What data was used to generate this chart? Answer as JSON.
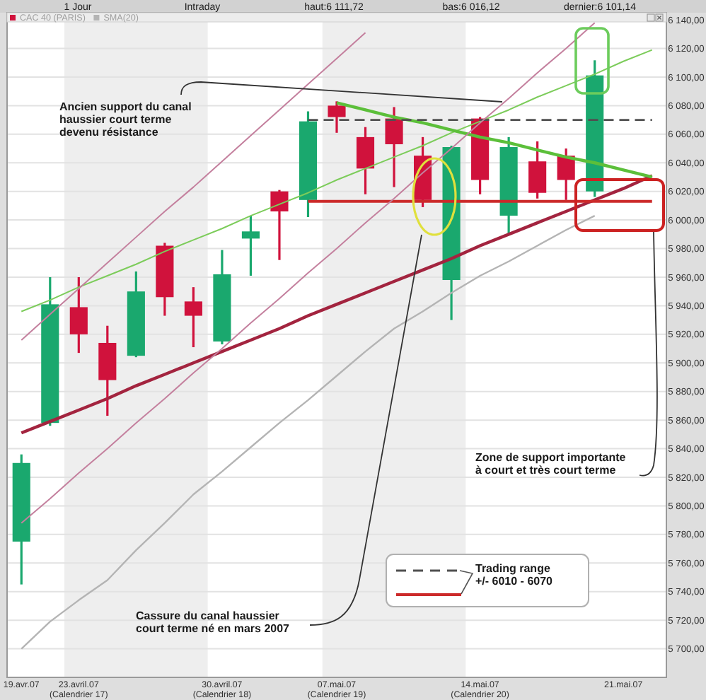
{
  "chart_data": {
    "type": "candlestick",
    "categories": [
      "19.avr.07",
      null,
      "23.avril.07 (Calendrier 17)",
      null,
      null,
      null,
      null,
      "30.avril.07 (Calendrier 18)",
      null,
      null,
      null,
      "07.mai.07 (Calendrier 19)",
      null,
      null,
      null,
      null,
      "14.mai.07 (Calendrier 20)",
      null,
      null,
      null,
      null,
      "21.mai.07",
      null
    ],
    "ylim": [
      5680,
      6145
    ],
    "yticks": [
      {
        "value": 5700,
        "label": "5 700,00"
      },
      {
        "value": 5720,
        "label": "5 720,00"
      },
      {
        "value": 5740,
        "label": "5 740,00"
      },
      {
        "value": 5760,
        "label": "5 760,00"
      },
      {
        "value": 5780,
        "label": "5 780,00"
      },
      {
        "value": 5800,
        "label": "5 800,00"
      },
      {
        "value": 5820,
        "label": "5 820,00"
      },
      {
        "value": 5840,
        "label": "5 840,00"
      },
      {
        "value": 5860,
        "label": "5 860,00"
      },
      {
        "value": 5880,
        "label": "5 880,00"
      },
      {
        "value": 5900,
        "label": "5 900,00"
      },
      {
        "value": 5920,
        "label": "5 920,00"
      },
      {
        "value": 5940,
        "label": "5 940,00"
      },
      {
        "value": 5960,
        "label": "5 960,00"
      },
      {
        "value": 5980,
        "label": "5 980,00"
      },
      {
        "value": 6000,
        "label": "6 000,00"
      },
      {
        "value": 6020,
        "label": "6 020,00"
      },
      {
        "value": 6040,
        "label": "6 040,00"
      },
      {
        "value": 6060,
        "label": "6 060,00"
      },
      {
        "value": 6080,
        "label": "6 080,00"
      },
      {
        "value": 6100,
        "label": "6 100,00"
      },
      {
        "value": 6120,
        "label": "6 120,00"
      },
      {
        "value": 6140,
        "label": "6 140,00"
      }
    ],
    "grid": "y",
    "legend": "top left",
    "bands": [
      {
        "axis": "x",
        "from": "23.avril.07 (Calendrier 17)",
        "to": "30.avril.07 (Calendrier 18)",
        "color": "#eeeeee"
      },
      {
        "axis": "x",
        "from": "07.mai.07 (Calendrier 19)",
        "to": "14.mai.07 (Calendrier 20)",
        "color": "#eeeeee"
      }
    ],
    "annotations": [
      "1 Jour",
      "Intraday",
      "haut:6 111,72",
      "bas:6 016,12",
      "dernier:6 101,14",
      "Ancien support du canal\nhaussier court terme\ndevenu résistance",
      "Cassure du canal haussier\ncourt terme né en mars 2007",
      "Zone de support importante\nà court et très court terme",
      "Trading range\n+/- 6010 - 6070"
    ],
    "series": [
      {
        "name": "CAC 40 (PARIS)",
        "color": "#d0123c",
        "colors": [
          "#1aa86e",
          "#1aa86e",
          "#d0123c",
          "#d0123c",
          "#1aa86e",
          "#d0123c",
          "#d0123c",
          "#1aa86e",
          "#1aa86e",
          "#d0123c",
          "#1aa86e",
          "#d0123c",
          "#d0123c",
          "#d0123c",
          "#d0123c",
          "#1aa86e",
          "#d0123c",
          "#1aa86e",
          "#d0123c",
          "#d0123c",
          "#1aa86e",
          null,
          null
        ],
        "ohlc": [
          [
            5775,
            5836,
            5745,
            5830
          ],
          [
            5858,
            5960,
            5856,
            5941
          ],
          [
            5939,
            5960,
            5907,
            5920
          ],
          [
            5914,
            5926,
            5863,
            5888
          ],
          [
            5905,
            5964,
            5904,
            5950
          ],
          [
            5982,
            5984,
            5933,
            5946
          ],
          [
            5943,
            5953,
            5911,
            5933
          ],
          [
            5915,
            5979,
            5913,
            5962
          ],
          [
            5987,
            6003,
            5961,
            5992
          ],
          [
            6020,
            6021,
            5972,
            6006
          ],
          [
            6014,
            6076,
            6002,
            6069
          ],
          [
            6080,
            6083,
            6061,
            6072
          ],
          [
            6058,
            6065,
            6018,
            6036
          ],
          [
            6071,
            6079,
            6023,
            6053
          ],
          [
            6045,
            6058,
            6009,
            6014
          ],
          [
            5958,
            6052,
            5930,
            6051
          ],
          [
            6071,
            6072,
            6018,
            6028
          ],
          [
            6003,
            6058,
            5990,
            6051
          ],
          [
            6041,
            6055,
            6015,
            6019
          ],
          [
            6045,
            6050,
            6014,
            6028
          ],
          [
            6020,
            6111.72,
            6016.12,
            6101.14
          ],
          null,
          null
        ]
      },
      {
        "type": "line",
        "name": "SMA(20)",
        "color": "#b4b4b4",
        "values": [
          5700,
          5719,
          5734,
          5748,
          5769,
          5788,
          5808,
          5824,
          5841,
          5858,
          5874,
          5891,
          5908,
          5924,
          5936,
          5949,
          5961,
          5971,
          5982,
          5993,
          6003,
          null,
          null
        ]
      },
      {
        "type": "line",
        "color": "#7ccc5a",
        "values": [
          5936,
          5944,
          5953,
          5961,
          5969,
          5978,
          5986,
          5994,
          6003,
          6011,
          6019,
          6028,
          6036,
          6044,
          6052,
          6061,
          6069,
          6077,
          6086,
          6094,
          6102,
          6111,
          6119
        ]
      },
      {
        "type": "line",
        "color": "#a3243f",
        "values": [
          5851,
          5859,
          5867,
          5875,
          5884,
          5892,
          5900,
          5908,
          5916,
          5924,
          5933,
          5941,
          5949,
          5957,
          5965,
          5973,
          5982,
          5990,
          5998,
          6006,
          6014,
          6022,
          6031
        ]
      },
      {
        "type": "line",
        "color": "#5cbf3a",
        "values": [
          null,
          null,
          null,
          null,
          null,
          null,
          null,
          null,
          null,
          null,
          null,
          6082,
          6077,
          6072,
          6068,
          6063,
          6058,
          6054,
          6049,
          6044,
          6040,
          6035,
          6030
        ]
      },
      {
        "type": "line",
        "color": "#505050",
        "line_style": "dashed",
        "values": [
          null,
          null,
          null,
          null,
          null,
          null,
          null,
          null,
          null,
          null,
          6070,
          6070,
          6070,
          6070,
          6070,
          6070,
          6070,
          6070,
          6070,
          6070,
          6070,
          6070,
          6070
        ]
      },
      {
        "type": "line",
        "color": "#cc2a2a",
        "values": [
          null,
          null,
          null,
          null,
          null,
          null,
          null,
          null,
          null,
          null,
          6013,
          6013,
          6013,
          6013,
          6013,
          6013,
          6013,
          6013,
          6013,
          6013,
          6013,
          6013,
          6013
        ]
      },
      {
        "type": "line",
        "color": "#c4809e",
        "values": [
          5916,
          5934,
          5952,
          5970,
          5988,
          6006,
          6023,
          6041,
          6059,
          6077,
          6095,
          6113,
          6131,
          null,
          null,
          null,
          null,
          null,
          null,
          null,
          null,
          null,
          null
        ]
      },
      {
        "type": "line",
        "color": "#c4809e",
        "values": [
          5788,
          5805,
          5823,
          5840,
          5858,
          5875,
          5893,
          5910,
          5928,
          5945,
          5963,
          5980,
          5998,
          6015,
          6033,
          6050,
          6068,
          6085,
          6103,
          6120,
          6138,
          null,
          null
        ]
      }
    ]
  }
}
